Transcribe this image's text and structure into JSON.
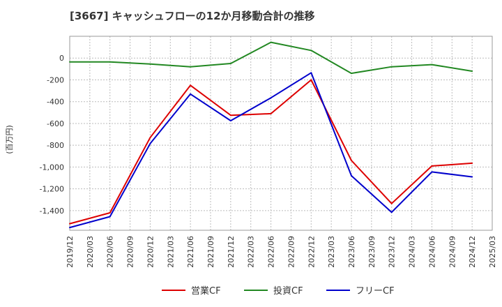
{
  "chart_data": {
    "type": "line",
    "title": "[3667]  キャッシュフローの12か月移動合計の推移",
    "ylabel": "(百万円)",
    "xlabel": "",
    "ylim": [
      -1580,
      200
    ],
    "yticks": [
      0,
      -200,
      -400,
      -600,
      -800,
      -1000,
      -1200,
      -1400
    ],
    "ytick_labels": [
      "0",
      "-200",
      "-400",
      "-600",
      "-800",
      "-1,000",
      "-1,200",
      "-1,400"
    ],
    "xticks": [
      "2019/12",
      "2020/03",
      "2020/06",
      "2020/09",
      "2020/12",
      "2021/03",
      "2021/06",
      "2021/09",
      "2021/12",
      "2022/03",
      "2022/06",
      "2022/09",
      "2022/12",
      "2023/03",
      "2023/06",
      "2023/09",
      "2023/12",
      "2024/03",
      "2024/06",
      "2024/09",
      "2024/12",
      "2025/03"
    ],
    "grid": true,
    "legend_position": "bottom",
    "series": [
      {
        "name": "営業CF",
        "color": "#dd0000",
        "x": [
          "2019/12",
          "2020/06",
          "2020/12",
          "2021/06",
          "2021/12",
          "2022/06",
          "2022/12",
          "2023/06",
          "2023/12",
          "2024/06",
          "2024/12"
        ],
        "values": [
          -1520,
          -1420,
          -730,
          -250,
          -525,
          -510,
          -200,
          -940,
          -1335,
          -990,
          -965
        ]
      },
      {
        "name": "投資CF",
        "color": "#228822",
        "x": [
          "2019/12",
          "2020/06",
          "2020/12",
          "2021/06",
          "2021/12",
          "2022/06",
          "2022/12",
          "2023/06",
          "2023/12",
          "2024/06",
          "2024/12"
        ],
        "values": [
          -35,
          -35,
          -55,
          -80,
          -50,
          145,
          70,
          -140,
          -80,
          -60,
          -120
        ]
      },
      {
        "name": "フリーCF",
        "color": "#0000cc",
        "x": [
          "2019/12",
          "2020/06",
          "2020/12",
          "2021/06",
          "2021/12",
          "2022/06",
          "2022/12",
          "2023/06",
          "2023/12",
          "2024/06",
          "2024/12"
        ],
        "values": [
          -1555,
          -1455,
          -785,
          -330,
          -575,
          -365,
          -135,
          -1080,
          -1415,
          -1045,
          -1090
        ]
      }
    ]
  }
}
